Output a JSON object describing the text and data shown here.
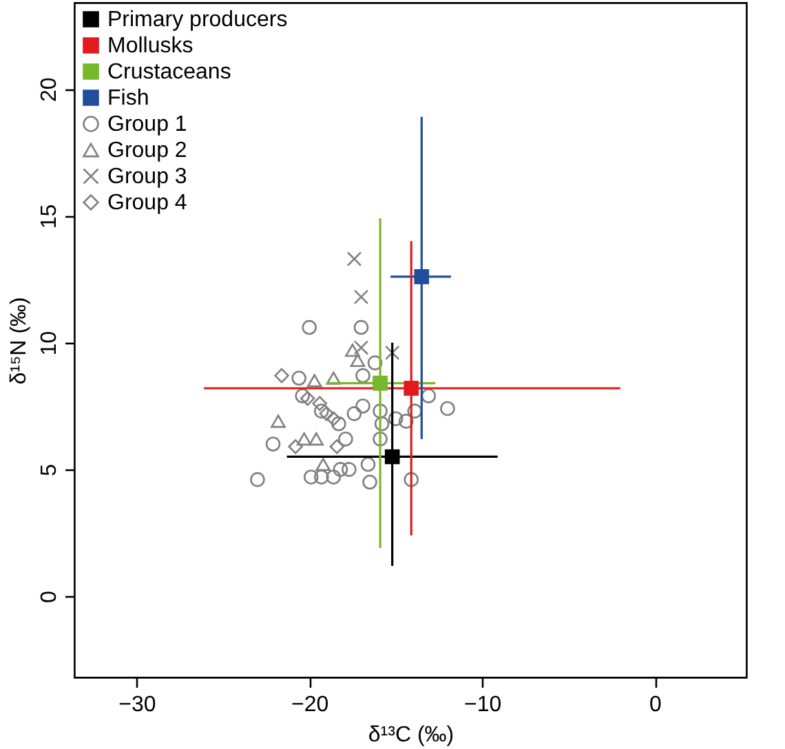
{
  "chart_data": {
    "type": "scatter",
    "xlabel": "δ¹³C (‰)",
    "ylabel": "δ¹⁵N (‰)",
    "xlim": [
      -33.6,
      5.3
    ],
    "ylim": [
      -3.2,
      23.4
    ],
    "xticks": [
      -30,
      -20,
      -10,
      0
    ],
    "yticks": [
      0,
      5,
      10,
      15,
      20
    ],
    "grid": false,
    "legend": "top left",
    "series": [
      {
        "name": "Primary producers",
        "color": "#000000",
        "marker": "square",
        "x": [
          -15.2
        ],
        "values": [
          5.5
        ],
        "xerrors": [
          [
            -21.3,
            -9.1
          ]
        ],
        "errors": [
          [
            1.2,
            10.0
          ]
        ]
      },
      {
        "name": "Mollusks",
        "color": "#e31a1c",
        "marker": "square",
        "x": [
          -14.1
        ],
        "values": [
          8.2
        ],
        "xerrors": [
          [
            -26.1,
            -2.0
          ]
        ],
        "errors": [
          [
            2.4,
            14.0
          ]
        ]
      },
      {
        "name": "Crustaceans",
        "color": "#77b82a",
        "marker": "square",
        "x": [
          -15.9
        ],
        "values": [
          8.4
        ],
        "xerrors": [
          [
            -19.0,
            -12.7
          ]
        ],
        "errors": [
          [
            1.9,
            14.9
          ]
        ]
      },
      {
        "name": "Fish",
        "color": "#1f4e9c",
        "marker": "square",
        "x": [
          -13.5
        ],
        "values": [
          12.6
        ],
        "xerrors": [
          [
            -15.3,
            -11.8
          ]
        ],
        "errors": [
          [
            6.2,
            18.9
          ]
        ]
      },
      {
        "name": "Group 1",
        "color": "#808080",
        "marker": "circle",
        "x": [
          -20.0,
          -17.0,
          -16.9,
          -16.2,
          -20.6,
          -16.9,
          -17.4,
          -15.9,
          -15.8,
          -15.0,
          -14.4,
          -13.9,
          -13.1,
          -12.0,
          -18.3,
          -17.9,
          -15.9,
          -22.1,
          -23.0,
          -19.9,
          -16.5,
          -14.1,
          -17.7,
          -16.6,
          -18.6,
          -18.2,
          -19.3,
          -20.4,
          -19.3
        ],
        "values": [
          10.6,
          10.6,
          8.7,
          9.2,
          8.6,
          7.5,
          7.2,
          7.3,
          6.8,
          7.0,
          6.9,
          7.3,
          7.9,
          7.4,
          6.8,
          6.2,
          6.2,
          6.0,
          4.6,
          4.7,
          4.5,
          4.6,
          5.0,
          5.2,
          4.7,
          5.0,
          4.7,
          7.9,
          7.3
        ]
      },
      {
        "name": "Group 2",
        "color": "#808080",
        "marker": "triangle",
        "x": [
          -21.8,
          -19.7,
          -18.6,
          -17.5,
          -17.2,
          -19.6,
          -20.3,
          -19.2
        ],
        "values": [
          6.9,
          8.5,
          8.6,
          9.7,
          9.3,
          6.2,
          6.2,
          5.2
        ]
      },
      {
        "name": "Group 3",
        "color": "#808080",
        "marker": "cross",
        "x": [
          -17.4,
          -17.0,
          -17.0,
          -15.2
        ],
        "values": [
          13.3,
          11.8,
          9.8,
          9.6
        ]
      },
      {
        "name": "Group 4",
        "color": "#808080",
        "marker": "diamond",
        "x": [
          -21.6,
          -20.1,
          -19.4,
          -19.0,
          -18.6,
          -20.8,
          -18.4
        ],
        "values": [
          8.7,
          7.8,
          7.6,
          7.2,
          7.0,
          5.9,
          5.9
        ]
      }
    ]
  }
}
